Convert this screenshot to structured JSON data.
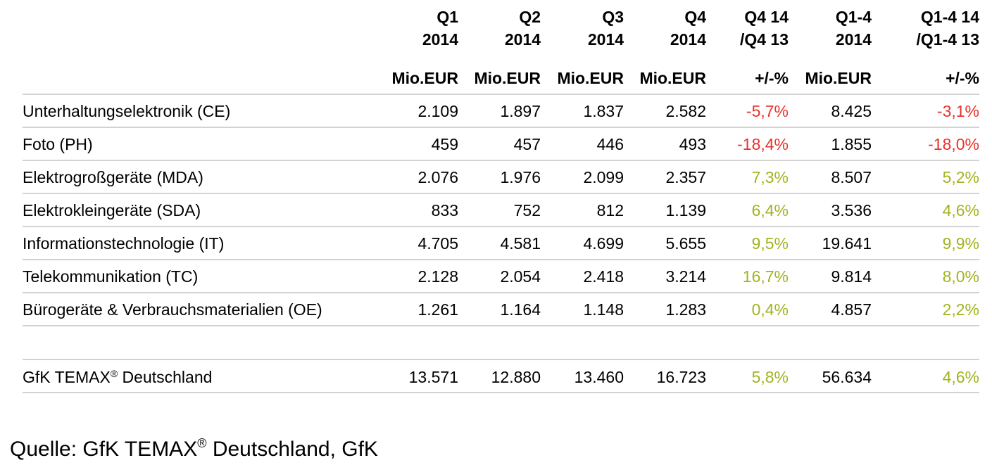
{
  "table": {
    "columns": [
      {
        "lines": [
          "Q1",
          "2014"
        ],
        "unit": "Mio.EUR"
      },
      {
        "lines": [
          "Q2",
          "2014"
        ],
        "unit": "Mio.EUR"
      },
      {
        "lines": [
          "Q3",
          "2014"
        ],
        "unit": "Mio.EUR"
      },
      {
        "lines": [
          "Q4",
          "2014"
        ],
        "unit": "Mio.EUR"
      },
      {
        "lines": [
          "Q4 14",
          "/Q4 13"
        ],
        "unit": "+/-%"
      },
      {
        "lines": [
          "Q1-4",
          "2014"
        ],
        "unit": "Mio.EUR"
      },
      {
        "lines": [
          "Q1-4 14",
          "/Q1-4 13"
        ],
        "unit": "+/-%"
      }
    ],
    "tones": {
      "negative": "#e8322d",
      "positive": "#a3b31f"
    },
    "rows": [
      {
        "label": "Unterhaltungselektronik (CE)",
        "cells": [
          "2.109",
          "1.897",
          "1.837",
          "2.582",
          {
            "text": "-5,7%",
            "tone": "negative"
          },
          "8.425",
          {
            "text": "-3,1%",
            "tone": "negative"
          }
        ]
      },
      {
        "label": "Foto (PH)",
        "cells": [
          "459",
          "457",
          "446",
          "493",
          {
            "text": "-18,4%",
            "tone": "negative"
          },
          "1.855",
          {
            "text": "-18,0%",
            "tone": "negative"
          }
        ]
      },
      {
        "label": "Elektrogroßgeräte (MDA)",
        "cells": [
          "2.076",
          "1.976",
          "2.099",
          "2.357",
          {
            "text": "7,3%",
            "tone": "positive"
          },
          "8.507",
          {
            "text": "5,2%",
            "tone": "positive"
          }
        ]
      },
      {
        "label": "Elektrokleingeräte (SDA)",
        "cells": [
          "833",
          "752",
          "812",
          "1.139",
          {
            "text": "6,4%",
            "tone": "positive"
          },
          "3.536",
          {
            "text": "4,6%",
            "tone": "positive"
          }
        ]
      },
      {
        "label": "Informationstechnologie (IT)",
        "cells": [
          "4.705",
          "4.581",
          "4.699",
          "5.655",
          {
            "text": "9,5%",
            "tone": "positive"
          },
          "19.641",
          {
            "text": "9,9%",
            "tone": "positive"
          }
        ]
      },
      {
        "label": "Telekommunikation (TC)",
        "cells": [
          "2.128",
          "2.054",
          "2.418",
          "3.214",
          {
            "text": "16,7%",
            "tone": "positive"
          },
          "9.814",
          {
            "text": "8,0%",
            "tone": "positive"
          }
        ]
      },
      {
        "label": "Bürogeräte & Verbrauchsmaterialien (OE)",
        "cells": [
          "1.261",
          "1.164",
          "1.148",
          "1.283",
          {
            "text": "0,4%",
            "tone": "positive"
          },
          "4.857",
          {
            "text": "2,2%",
            "tone": "positive"
          }
        ]
      }
    ],
    "total": {
      "label": [
        "GfK TEMAX",
        "®",
        " Deutschland"
      ],
      "cells": [
        "13.571",
        "12.880",
        "13.460",
        "16.723",
        {
          "text": "5,8%",
          "tone": "positive"
        },
        "56.634",
        {
          "text": "4,6%",
          "tone": "positive"
        }
      ]
    }
  },
  "source": [
    "Quelle: GfK TEMAX",
    "®",
    " Deutschland, GfK"
  ]
}
